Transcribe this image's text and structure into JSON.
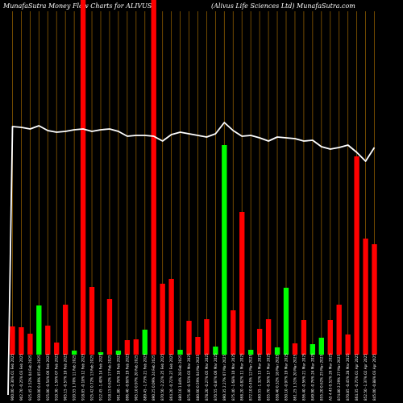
{
  "chart_data": {
    "type": "bar",
    "title_left": "MunafaSutra  Money Flow  Charts for ALIVUS",
    "title_right": "(Alivus Life    Sciences Ltd) MunafaSutra.com",
    "colors": {
      "background": "#000000",
      "up": "#00ff00",
      "down": "#ff0000",
      "grid": "#8b5a00",
      "line": "#ffffff"
    },
    "ylim": [
      0,
      440
    ],
    "grid": true,
    "categories": [
      "03 Feb 2025",
      "05 Feb 2025",
      "07 Feb 2025",
      "10 Feb 2025",
      "12 Feb 2025",
      "14 Feb 2025",
      "17 Feb 2025",
      "19 Feb 2025",
      "21 Feb 2025",
      "24 Feb 2025",
      "26 Feb 2025",
      "28 Feb 2025",
      "03 Mar 2025",
      "05 Mar 2025",
      "07 Mar 2025",
      "11 Mar 2025",
      "13 Mar 2025",
      "17 Mar 2025",
      "19 Mar 2025",
      "21 Mar 2025",
      "25 Mar 2025",
      "27 Mar 2025",
      "01 Apr 2025",
      "03 Apr 2025",
      "07 Apr 2025",
      "09 Apr 2025",
      "11 Apr 2025",
      "15 Apr 2025",
      "17 Apr 2025",
      "21 Apr 2025",
      "23 Apr 2025",
      "25 Apr 2025",
      "29 Apr 2025",
      "02 May 2025",
      "06 May 2025",
      "08 May 2025",
      "12 May 2025",
      "14 May 2025",
      "16 May 2025",
      "20 May 2025",
      "22 May 2025",
      "26 May 2025"
    ],
    "xtick_labels": [
      "900.00 -0.30% 01 Feb 2025",
      "902.70 -0.25% 03 Feb 2025",
      "925.45 2.52% 04 Feb 2025",
      "930.00 0.49% 05 Feb 2025",
      "925.00 -0.54% 06 Feb 2025",
      "910.30 -1.59% 07 Feb 2025",
      "905.15 -0.57% 10 Feb 2025",
      "920.55 1.70% 11 Feb 2025",
      "918.85 -0.18% 12 Feb 2025",
      "925.42 0.72% 13 Feb 2025",
      "912.45 -1.40% 14 Feb 2025",
      "918.15 0.62% 17 Feb 2025",
      "901.80 -1.78% 18 Feb 2025",
      "896.40 -0.60% 19 Feb 2025",
      "905.10 0.97% 20 Feb 2025",
      "889.45 -1.73% 21 Feb 2025",
      "890.25 0.09% 24 Feb 2025",
      "870.50 -2.22% 25 Feb 2025",
      "864.20 -0.72% 27 Feb 2025",
      "880.10 1.84% 28 Feb 2025",
      "875.40 -0.53% 03 Mar 2025",
      "880.60 0.59% 04 Mar 2025",
      "878.20 -0.27% 05 Mar 2025",
      "870.55 -0.87% 06 Mar 2025",
      "890.35 2.27% 07 Mar 2025",
      "875.40 -1.68% 10 Mar 2025",
      "868.20 -0.82% 11 Mar 2025",
      "872.10 0.45% 12 Mar 2025",
      "860.55 -1.32% 13 Mar 2025",
      "855.70 -0.56% 17 Mar 2025",
      "858.40 0.32% 18 Mar 2025",
      "850.10 -0.97% 19 Mar 2025",
      "861.25 1.31% 20 Mar 2025",
      "856.40 -0.56% 21 Mar 2025",
      "849.90 -0.76% 24 Mar 2025",
      "855.20 0.62% 25 Mar 2025",
      "AS 4.45 0.52% 26 Mar 2025",
      "874.80 2.29% 27 Mar 2025",
      "870.85 -0.45% 28 Mar 2025",
      "864.35 -0.75% 01 Apr 2025",
      "852.50 -1.37% 02 Apr 2025",
      "845.00 -0.88% 03 Apr 2025"
    ],
    "values": [
      35,
      34,
      26,
      61,
      36,
      15,
      62,
      5,
      440,
      84,
      3,
      69,
      5,
      18,
      19,
      31,
      440,
      88,
      94,
      6,
      42,
      22,
      44,
      10,
      260,
      55,
      177,
      6,
      32,
      44,
      9,
      83,
      14,
      43,
      13,
      21,
      43,
      62,
      25,
      246,
      144,
      137
    ],
    "direction": [
      "down",
      "down",
      "down",
      "up",
      "down",
      "down",
      "down",
      "up",
      "down",
      "down",
      "up",
      "down",
      "up",
      "down",
      "down",
      "up",
      "down",
      "down",
      "down",
      "up",
      "down",
      "down",
      "down",
      "up",
      "up",
      "down",
      "down",
      "up",
      "down",
      "down",
      "up",
      "up",
      "down",
      "down",
      "up",
      "up",
      "down",
      "down",
      "down",
      "down",
      "down",
      "down"
    ],
    "line_values": [
      157,
      158,
      160,
      156,
      162,
      164,
      163,
      161,
      160,
      163,
      161,
      160,
      163,
      169,
      168,
      168,
      169,
      175,
      167,
      164,
      166,
      168,
      170,
      166,
      152,
      162,
      169,
      168,
      171,
      175,
      170,
      171,
      172,
      175,
      174,
      182,
      185,
      183,
      180,
      189,
      200,
      183
    ],
    "line_start": 500
  }
}
